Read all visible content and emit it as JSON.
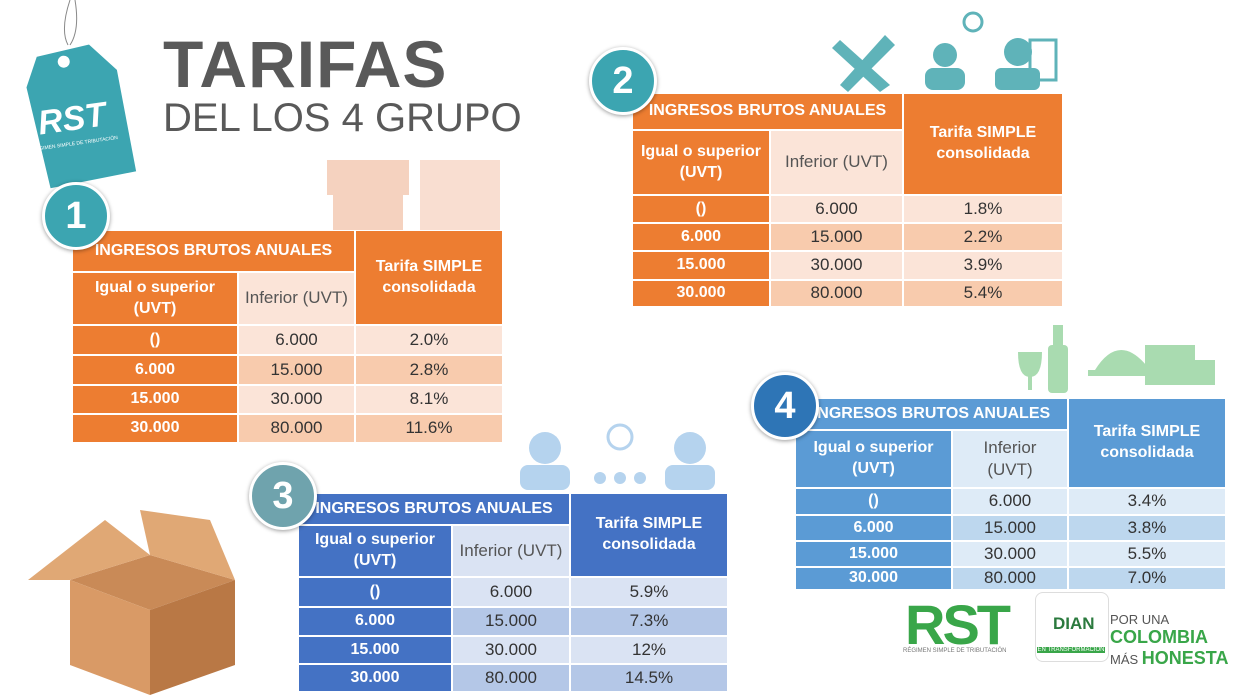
{
  "header": {
    "title": "TARIFAS",
    "subtitle": "DEL LOS 4 GRUPO"
  },
  "tag": {
    "label": "RST",
    "caption": "RÉGIMEN SIMPLE DE TRIBUTACIÓN"
  },
  "groups": [
    {
      "number": "1",
      "header": "INGRESOS BRUTOS ANUALES",
      "col1": "Igual o superior (UVT)",
      "col2": "Inferior (UVT)",
      "col3": "Tarifa SIMPLE consolidada",
      "rows": [
        [
          "()",
          "6.000",
          "2.0%"
        ],
        [
          "6.000",
          "15.000",
          "2.8%"
        ],
        [
          "15.000",
          "30.000",
          "8.1%"
        ],
        [
          "30.000",
          "80.000",
          "11.6%"
        ]
      ]
    },
    {
      "number": "2",
      "header": "INGRESOS BRUTOS ANUALES",
      "col1": "Igual o superior (UVT)",
      "col2": "Inferior (UVT)",
      "col3": "Tarifa SIMPLE consolidada",
      "rows": [
        [
          "()",
          "6.000",
          "1.8%"
        ],
        [
          "6.000",
          "15.000",
          "2.2%"
        ],
        [
          "15.000",
          "30.000",
          "3.9%"
        ],
        [
          "30.000",
          "80.000",
          "5.4%"
        ]
      ]
    },
    {
      "number": "3",
      "header": "INGRESOS BRUTOS ANUALES",
      "col1": "Igual o superior (UVT)",
      "col2": "Inferior (UVT)",
      "col3": "Tarifa SIMPLE consolidada",
      "rows": [
        [
          "()",
          "6.000",
          "5.9%"
        ],
        [
          "6.000",
          "15.000",
          "7.3%"
        ],
        [
          "15.000",
          "30.000",
          "12%"
        ],
        [
          "30.000",
          "80.000",
          "14.5%"
        ]
      ]
    },
    {
      "number": "4",
      "header": "INGRESOS BRUTOS ANUALES",
      "col1": "Igual o superior (UVT)",
      "col2": "Inferior (UVT)",
      "col3": "Tarifa SIMPLE consolidada",
      "rows": [
        [
          "()",
          "6.000",
          "3.4%"
        ],
        [
          "6.000",
          "15.000",
          "3.8%"
        ],
        [
          "15.000",
          "30.000",
          "5.5%"
        ],
        [
          "30.000",
          "80.000",
          "7.0%"
        ]
      ]
    }
  ],
  "footer": {
    "rst": "RST",
    "rst_caption": "RÉGIMEN SIMPLE DE TRIBUTACIÓN",
    "dian": "DIAN",
    "dian_caption": "EN TRANSFORMACIÓN",
    "slogan_1": "POR UNA",
    "slogan_2": "COLOMBIA",
    "slogan_3": "MÁS",
    "slogan_4": "HONESTA"
  }
}
